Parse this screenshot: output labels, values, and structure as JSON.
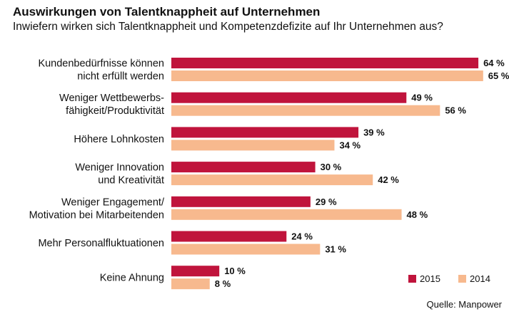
{
  "chart_data": {
    "type": "bar",
    "orientation": "horizontal",
    "title": "Auswirkungen von Talentknappheit auf Unternehmen",
    "subtitle": "Inwiefern wirken sich Talentknappheit und Kompetenzdefizite auf Ihr Unternehmen aus?",
    "source": "Quelle: Manpower",
    "xlim": [
      0,
      70
    ],
    "grid": false,
    "legend_position": "bottom-right",
    "categories": [
      [
        "Kundenbedürfnisse können",
        "nicht erfüllt werden"
      ],
      [
        "Weniger Wettbewerbs-",
        "fähigkeit/Produktivität"
      ],
      [
        "Höhere Lohnkosten"
      ],
      [
        "Weniger Innovation",
        "und Kreativität"
      ],
      [
        "Weniger Engagement/",
        "Motivation bei Mitarbeitenden"
      ],
      [
        "Mehr Personalfluktuationen"
      ],
      [
        "Keine Ahnung"
      ]
    ],
    "series": [
      {
        "name": "2015",
        "color": "#c0143c",
        "values": [
          64,
          49,
          39,
          30,
          29,
          24,
          10
        ]
      },
      {
        "name": "2014",
        "color": "#f7b98e",
        "values": [
          65,
          56,
          34,
          42,
          48,
          31,
          8
        ]
      }
    ],
    "value_suffix": " %"
  }
}
